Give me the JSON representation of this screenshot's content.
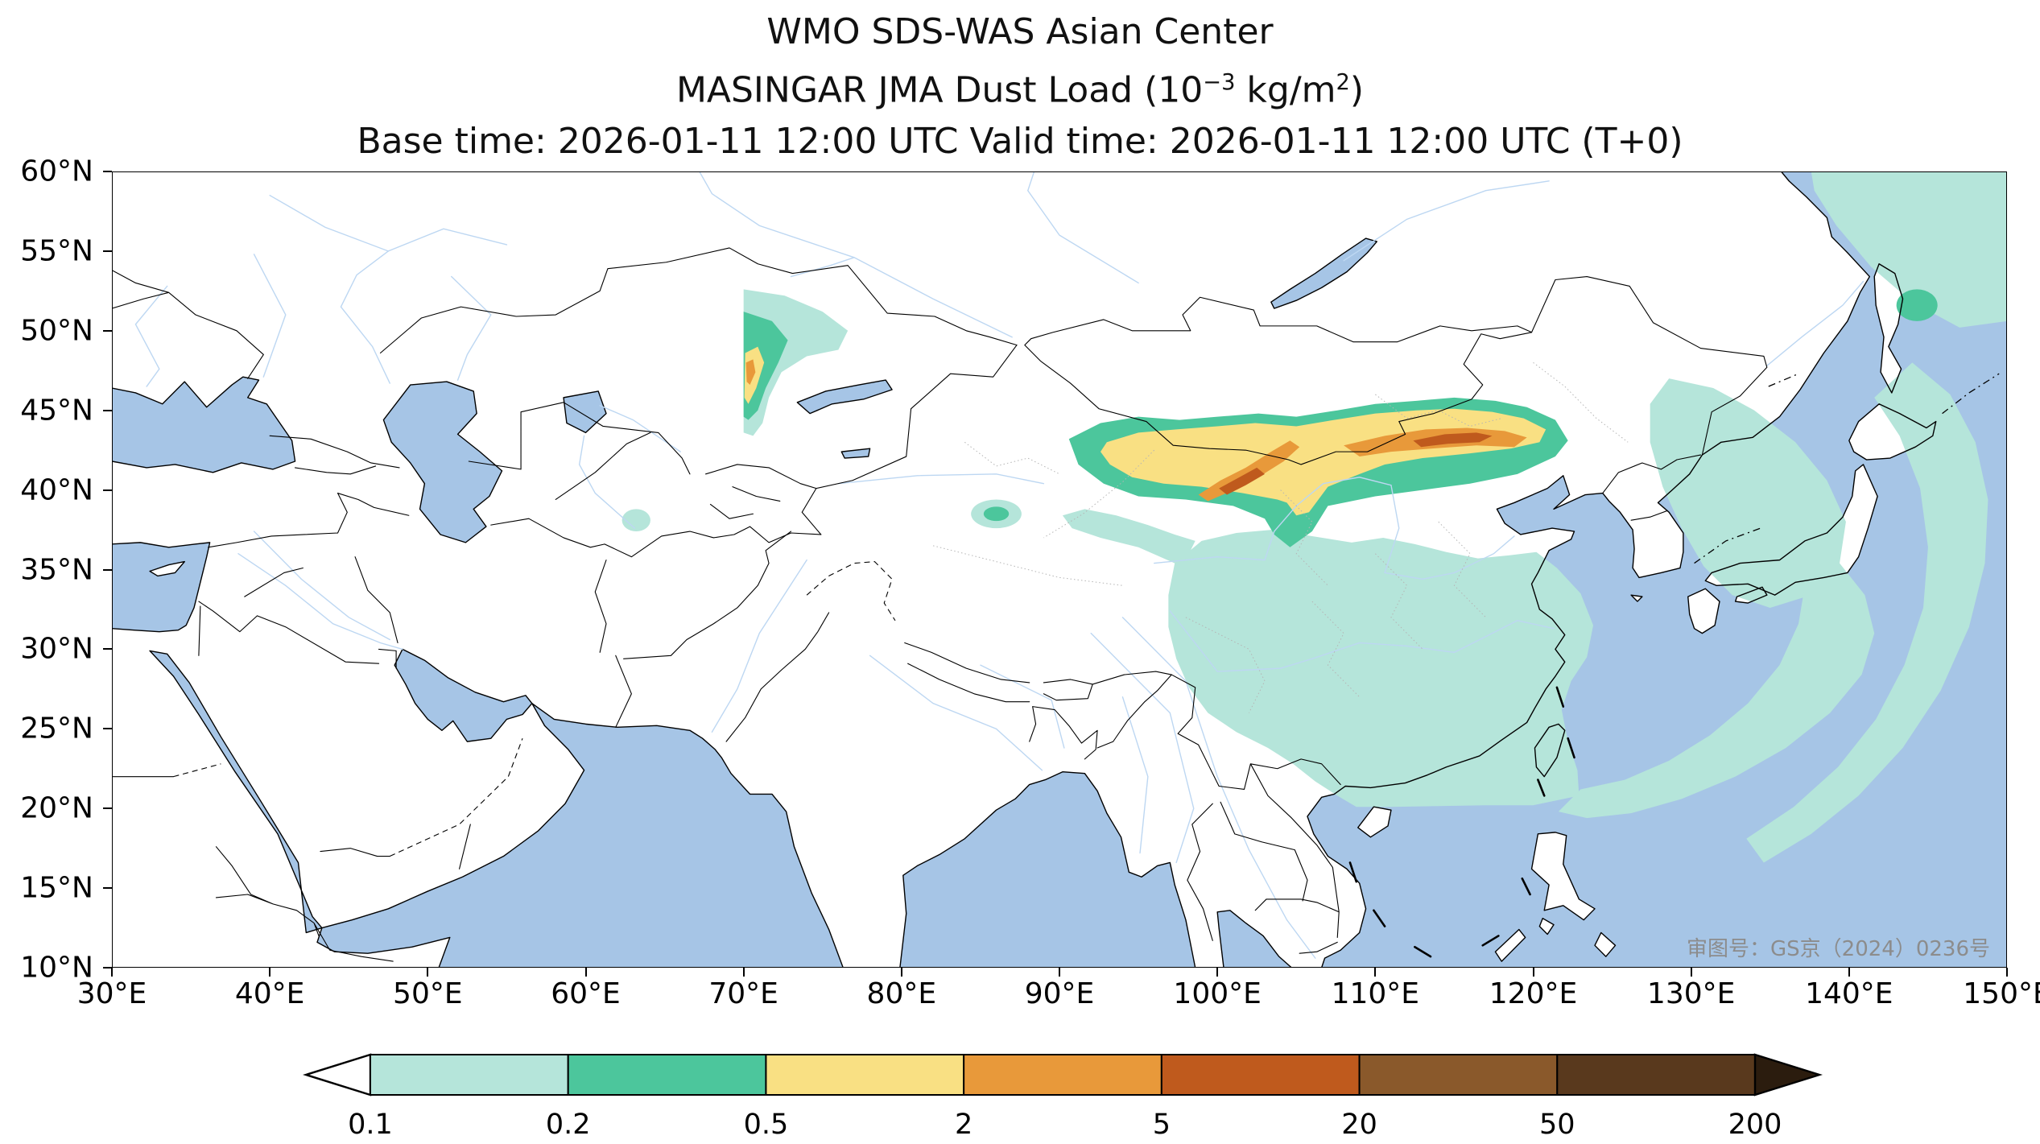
{
  "header": {
    "line1": "WMO SDS-WAS Asian Center",
    "line2": {
      "pre": "MASINGAR JMA Dust Load (10",
      "exp": "−3",
      "mid": " kg/m",
      "exp2": "2",
      "post": ")"
    },
    "line3": "Base time: 2026-01-11 12:00 UTC Valid time: 2026-01-11 12:00 UTC (T+0)"
  },
  "map": {
    "x_ticks": [
      "30°E",
      "40°E",
      "50°E",
      "60°E",
      "70°E",
      "80°E",
      "90°E",
      "100°E",
      "110°E",
      "120°E",
      "130°E",
      "140°E",
      "150°E"
    ],
    "y_ticks": [
      "60°N",
      "55°N",
      "50°N",
      "45°N",
      "40°N",
      "35°N",
      "30°N",
      "25°N",
      "20°N",
      "15°N",
      "10°N"
    ],
    "annotation": "审图号：GS京（2024）0236号",
    "colors": {
      "ocean": "#a6c5e6",
      "land": "#ffffff",
      "river": "#bdd7f2",
      "border": "#000000",
      "province_border": "#b5b5b5"
    }
  },
  "colorbar": {
    "tick_labels": [
      "0.1",
      "0.2",
      "0.5",
      "2",
      "5",
      "20",
      "50",
      "200"
    ],
    "segment_colors": [
      "#ffffff",
      "#b5e5da",
      "#4cc69c",
      "#f9e083",
      "#e8993a",
      "#bf5a1d",
      "#8a592b",
      "#59391d",
      "#2b1c0e"
    ]
  },
  "chart_data": {
    "type": "heatmap",
    "title": "MASINGAR JMA Dust Load (10^-3 kg/m^2)",
    "source": "WMO SDS-WAS Asian Center",
    "units": "10^-3 kg/m^2",
    "base_time": "2026-01-11 12:00 UTC",
    "valid_time": "2026-01-11 12:00 UTC",
    "forecast_step": "T+0",
    "lon_range_deg_e": [
      30,
      150
    ],
    "lat_range_deg_n": [
      10,
      60
    ],
    "contour_levels": [
      0.1,
      0.2,
      0.5,
      2,
      5,
      20,
      50,
      200
    ],
    "level_colors": [
      "#ffffff",
      "#b5e5da",
      "#4cc69c",
      "#f9e083",
      "#e8993a",
      "#bf5a1d",
      "#8a592b",
      "#59391d",
      "#2b1c0e"
    ],
    "features": [
      {
        "level": "5-20",
        "region": "dust storm cores near 100-103E 40-41.5N and 112-117E 43-43.6N (Gobi / Inner Mongolia)"
      },
      {
        "level": "2-5",
        "region": "bands 99-105E 39.5-43N and 108-119.6E 42-44N"
      },
      {
        "level": "0.5-2",
        "region": "broad belt 93-121E 40-45N across Mongolia / northern China; thin streak 70-71.3E 45-48.5N"
      },
      {
        "level": "0.2-0.5",
        "region": "rim around main belt 90-122E 38.5-46N; patch 70-73E 45-51N; spot near 144E 51.5N"
      },
      {
        "level": "0.1-0.2",
        "region": "central-eastern China south to 20N, western Pacific arcs over Japan toward Taiwan-Luzon, Sea of Okhotsk corner, Kazakhstan patch east of 70E, small spots near 63E 38N, 86E 38.5N, 92.5E 42N"
      }
    ],
    "legend_position": "bottom",
    "grid": false
  }
}
